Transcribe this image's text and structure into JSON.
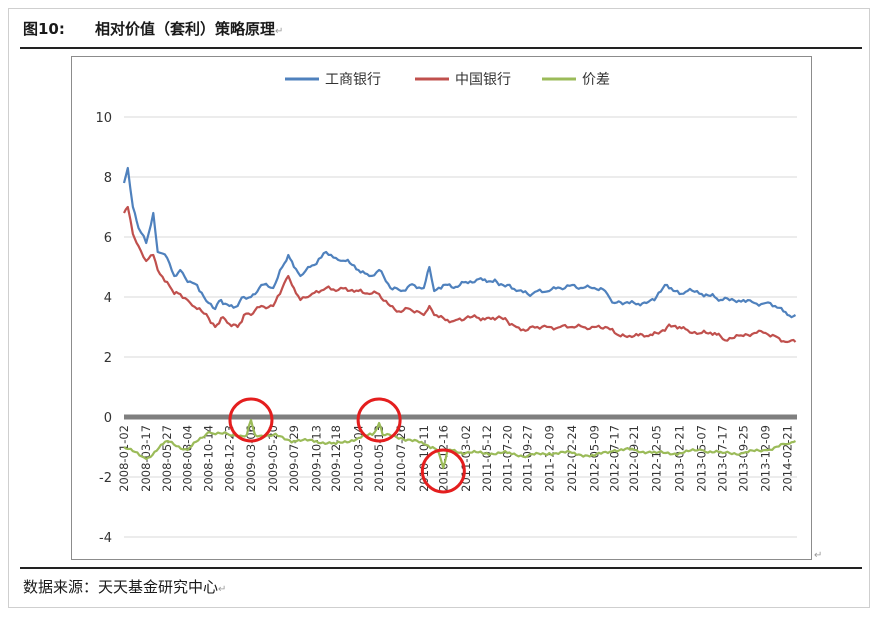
{
  "figure": {
    "number": "图10:",
    "title": "相对价值（套利）策略原理",
    "source": "数据来源：天天基金研究中心",
    "pilcrow": "↵"
  },
  "chart_data": {
    "type": "line",
    "legend_position": "top",
    "grid": true,
    "ylim": [
      -4,
      10
    ],
    "yticks": [
      -4,
      -2,
      0,
      2,
      4,
      6,
      8,
      10
    ],
    "x_tick_labels": [
      "2008-01-02",
      "2008-03-17",
      "2008-05-27",
      "2008-08-04",
      "2008-10-14",
      "2008-12-23",
      "2009-03-06",
      "2009-05-20",
      "2009-07-29",
      "2009-10-13",
      "2009-12-18",
      "2010-03-04",
      "2010-05-13",
      "2010-07-26",
      "2010-10-11",
      "2010-12-16",
      "2011-03-02",
      "2011-05-12",
      "2011-07-20",
      "2011-09-27",
      "2011-12-09",
      "2012-02-24",
      "2012-05-09",
      "2012-07-17",
      "2012-09-21",
      "2012-12-05",
      "2013-02-21",
      "2013-05-07",
      "2013-07-17",
      "2013-09-25",
      "2013-12-09",
      "2014-02-21"
    ],
    "highlight_circles_at_date": [
      "2009-03-06",
      "2010-05-13",
      "2010-12-16"
    ],
    "series": [
      {
        "name": "工商银行",
        "color": "#4f81bd",
        "x": [
          "2008-01-02",
          "2008-01-15",
          "2008-02-01",
          "2008-02-20",
          "2008-03-17",
          "2008-04-10",
          "2008-04-25",
          "2008-05-27",
          "2008-06-20",
          "2008-07-10",
          "2008-08-04",
          "2008-09-05",
          "2008-10-14",
          "2008-11-05",
          "2008-11-25",
          "2008-12-23",
          "2009-01-20",
          "2009-02-10",
          "2009-03-06",
          "2009-04-10",
          "2009-05-20",
          "2009-06-20",
          "2009-07-10",
          "2009-07-29",
          "2009-08-20",
          "2009-09-15",
          "2009-10-13",
          "2009-11-15",
          "2009-12-18",
          "2010-01-20",
          "2010-03-04",
          "2010-04-10",
          "2010-05-13",
          "2010-06-20",
          "2010-07-26",
          "2010-08-25",
          "2010-10-11",
          "2010-10-30",
          "2010-11-15",
          "2010-12-16",
          "2011-01-20",
          "2011-03-02",
          "2011-04-15",
          "2011-05-12",
          "2011-06-15",
          "2011-07-20",
          "2011-08-20",
          "2011-09-27",
          "2011-10-30",
          "2011-12-09",
          "2012-01-15",
          "2012-02-24",
          "2012-04-01",
          "2012-05-09",
          "2012-06-15",
          "2012-07-17",
          "2012-08-20",
          "2012-09-21",
          "2012-11-01",
          "2012-12-05",
          "2013-01-10",
          "2013-02-21",
          "2013-03-20",
          "2013-05-07",
          "2013-06-20",
          "2013-07-17",
          "2013-09-25",
          "2013-11-01",
          "2013-12-09",
          "2014-01-10",
          "2014-02-21",
          "2014-03-20"
        ],
        "y": [
          7.8,
          8.3,
          7.0,
          6.3,
          5.8,
          6.8,
          5.5,
          5.3,
          4.7,
          4.9,
          4.5,
          4.4,
          3.8,
          3.6,
          3.9,
          3.7,
          3.7,
          4.0,
          4.0,
          4.4,
          4.3,
          5.0,
          5.4,
          5.0,
          4.7,
          5.0,
          5.1,
          5.5,
          5.3,
          5.2,
          4.9,
          4.7,
          4.9,
          4.3,
          4.2,
          4.4,
          4.3,
          5.0,
          4.2,
          4.4,
          4.3,
          4.5,
          4.6,
          4.5,
          4.5,
          4.4,
          4.2,
          4.1,
          4.2,
          4.2,
          4.3,
          4.4,
          4.3,
          4.3,
          4.2,
          3.8,
          3.8,
          3.8,
          3.8,
          4.0,
          4.4,
          4.1,
          4.2,
          4.1,
          4.0,
          3.9,
          3.9,
          3.8,
          3.8,
          3.7,
          3.4,
          3.4
        ]
      },
      {
        "name": "中国银行",
        "color": "#c0504d",
        "x": [
          "2008-01-02",
          "2008-01-15",
          "2008-02-01",
          "2008-02-20",
          "2008-03-17",
          "2008-04-10",
          "2008-04-25",
          "2008-05-27",
          "2008-06-20",
          "2008-07-10",
          "2008-08-04",
          "2008-09-05",
          "2008-10-14",
          "2008-11-05",
          "2008-11-25",
          "2008-12-23",
          "2009-01-20",
          "2009-02-10",
          "2009-03-06",
          "2009-04-10",
          "2009-05-20",
          "2009-06-20",
          "2009-07-10",
          "2009-07-29",
          "2009-08-20",
          "2009-09-15",
          "2009-10-13",
          "2009-11-15",
          "2009-12-18",
          "2010-01-20",
          "2010-03-04",
          "2010-04-10",
          "2010-05-13",
          "2010-06-20",
          "2010-07-26",
          "2010-08-25",
          "2010-10-11",
          "2010-10-30",
          "2010-11-15",
          "2010-12-16",
          "2011-01-20",
          "2011-03-02",
          "2011-04-15",
          "2011-05-12",
          "2011-06-15",
          "2011-07-20",
          "2011-08-20",
          "2011-09-27",
          "2011-10-30",
          "2011-12-09",
          "2012-01-15",
          "2012-02-24",
          "2012-04-01",
          "2012-05-09",
          "2012-06-15",
          "2012-07-17",
          "2012-08-20",
          "2012-09-21",
          "2012-11-01",
          "2012-12-05",
          "2013-01-10",
          "2013-02-21",
          "2013-03-20",
          "2013-05-07",
          "2013-06-20",
          "2013-07-17",
          "2013-09-25",
          "2013-11-01",
          "2013-12-09",
          "2014-01-10",
          "2014-02-21",
          "2014-03-20"
        ],
        "y": [
          6.8,
          7.0,
          6.1,
          5.7,
          5.2,
          5.4,
          4.9,
          4.5,
          4.1,
          4.1,
          3.9,
          3.6,
          3.3,
          3.0,
          3.3,
          3.1,
          3.0,
          3.4,
          3.4,
          3.7,
          3.7,
          4.3,
          4.7,
          4.3,
          3.9,
          4.0,
          4.2,
          4.3,
          4.2,
          4.3,
          4.2,
          4.1,
          4.1,
          3.7,
          3.5,
          3.6,
          3.4,
          3.7,
          3.4,
          3.3,
          3.2,
          3.3,
          3.3,
          3.3,
          3.3,
          3.2,
          3.0,
          2.9,
          3.0,
          3.0,
          3.0,
          3.0,
          3.0,
          3.0,
          3.0,
          2.8,
          2.7,
          2.7,
          2.7,
          2.8,
          3.0,
          3.0,
          2.9,
          2.8,
          2.8,
          2.6,
          2.7,
          2.8,
          2.8,
          2.7,
          2.5,
          2.5
        ]
      },
      {
        "name": "价差",
        "color": "#9bbb59",
        "x": [
          "2008-01-02",
          "2008-03-17",
          "2008-05-27",
          "2008-08-04",
          "2008-10-14",
          "2008-12-23",
          "2009-02-20",
          "2009-03-06",
          "2009-03-20",
          "2009-05-20",
          "2009-07-29",
          "2009-10-13",
          "2009-12-18",
          "2010-03-04",
          "2010-04-20",
          "2010-05-13",
          "2010-05-25",
          "2010-07-26",
          "2010-10-11",
          "2010-11-10",
          "2010-12-01",
          "2010-12-16",
          "2010-12-30",
          "2011-03-02",
          "2011-05-12",
          "2011-07-20",
          "2011-09-27",
          "2011-12-09",
          "2012-02-24",
          "2012-05-09",
          "2012-07-17",
          "2012-09-21",
          "2012-12-05",
          "2013-02-21",
          "2013-05-07",
          "2013-07-17",
          "2013-09-25",
          "2013-12-09",
          "2014-02-21",
          "2014-03-20"
        ],
        "y": [
          -1.0,
          -1.4,
          -0.8,
          -1.1,
          -0.5,
          -0.6,
          -0.6,
          -0.1,
          -0.6,
          -0.6,
          -0.8,
          -0.8,
          -0.9,
          -0.7,
          -0.6,
          -0.2,
          -0.6,
          -0.7,
          -0.9,
          -1.0,
          -1.2,
          -1.7,
          -1.1,
          -1.2,
          -1.2,
          -1.2,
          -1.3,
          -1.2,
          -1.2,
          -1.3,
          -1.1,
          -1.1,
          -1.2,
          -1.2,
          -1.1,
          -1.2,
          -1.2,
          -1.1,
          -0.9,
          -0.8
        ]
      }
    ]
  }
}
